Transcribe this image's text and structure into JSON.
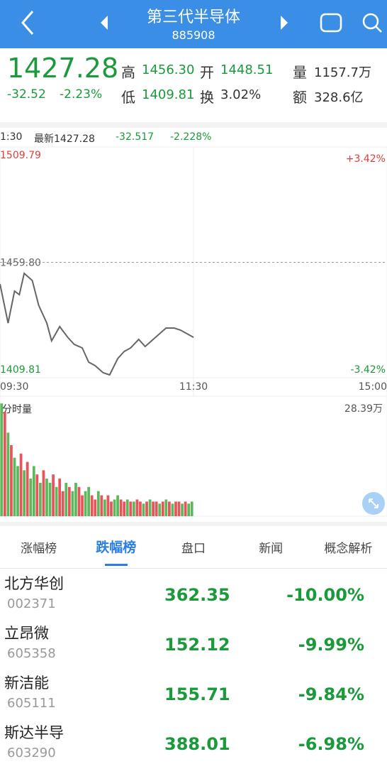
{
  "header": {
    "title": "第三代半导体",
    "code": "885908"
  },
  "quote": {
    "price": "1427.28",
    "change": "-32.52",
    "change_pct": "-2.23%",
    "high_label": "高",
    "high": "1456.30",
    "open_label": "开",
    "open": "1448.51",
    "volume_label": "量",
    "volume": "1157.7万",
    "low_label": "低",
    "low": "1409.81",
    "turnover_label": "换",
    "turnover": "3.02%",
    "amount_label": "额",
    "amount": "328.6亿"
  },
  "chart_info": {
    "time": "1:30",
    "latest": "最新1427.28",
    "change": "-32.517",
    "change_pct": "-2.228%"
  },
  "chart_data": [
    {
      "type": "line",
      "color": "#666666",
      "x": [
        0,
        5,
        9,
        12,
        15,
        20,
        24,
        29,
        32,
        37,
        42,
        46,
        51,
        55,
        59,
        64,
        68,
        73,
        77,
        81,
        86,
        90,
        95,
        99,
        103,
        108,
        112,
        116,
        120
      ],
      "values": [
        1450.42,
        1433.51,
        1447.35,
        1445.81,
        1455.04,
        1451.96,
        1441.2,
        1433.51,
        1425.82,
        1431.97,
        1427.35,
        1424.28,
        1422.74,
        1416.59,
        1415.05,
        1411.97,
        1411.05,
        1418.13,
        1421.2,
        1422.74,
        1426.43,
        1423.35,
        1426.43,
        1428.89,
        1431.35,
        1431.35,
        1430.43,
        1428.89,
        1427.3
      ],
      "xlim": [
        0,
        240
      ],
      "xticks": [
        {
          "value": 0,
          "label": "09:30"
        },
        {
          "value": 120,
          "label": "11:30"
        },
        {
          "value": 240,
          "label": "15:00"
        }
      ],
      "ylim": [
        1409.81,
        1509.79
      ],
      "yticks": [
        1509.79,
        {
          "value": 1459.8,
          "label": "1459.80"
        },
        1409.81
      ],
      "y2lim": [
        -3.42,
        3.42
      ],
      "y2ticks": [
        {
          "value": 3.42,
          "label": "+3.42%"
        },
        {
          "value": -3.42,
          "label": "-3.42%"
        }
      ]
    },
    {
      "type": "bar",
      "title": "分时量",
      "x": [
        1,
        3,
        5,
        7,
        9,
        11,
        13,
        15,
        17,
        19,
        21,
        23,
        25,
        27,
        29,
        31,
        33,
        35,
        37,
        39,
        41,
        43,
        45,
        47,
        49,
        51,
        53,
        55,
        57,
        59,
        61,
        63,
        65,
        67,
        69,
        71,
        73,
        75,
        77,
        79,
        81,
        83,
        85,
        87,
        89,
        91,
        93,
        95,
        97,
        99,
        101,
        103,
        105,
        107,
        109,
        111,
        113,
        115,
        117,
        119
      ],
      "values": [
        27,
        25,
        20,
        17,
        14,
        12,
        15,
        11,
        13,
        9,
        12,
        10,
        8,
        11,
        9,
        8,
        10,
        7,
        9,
        6,
        8,
        7,
        6,
        8,
        7,
        5,
        6,
        7,
        5,
        4,
        6,
        5,
        4,
        5,
        3.5,
        4,
        5,
        4,
        3.5,
        4,
        3.5,
        3.5,
        4,
        3.5,
        3,
        3.5,
        4,
        3.5,
        3.5,
        3,
        3.5,
        4,
        3.5,
        3,
        3.5,
        3.5,
        3,
        3.5,
        3,
        3.5
      ],
      "colors": [
        "#5cb85c",
        "#e8545a",
        "#5cb85c",
        "#e8545a",
        "#5cb85c",
        "#5cb85c",
        "#e8545a",
        "#5cb85c",
        "#e8545a",
        "#5cb85c",
        "#5cb85c",
        "#e8545a",
        "#5cb85c",
        "#e8545a",
        "#5cb85c",
        "#5cb85c",
        "#e8545a",
        "#5cb85c",
        "#e8545a",
        "#e8545a",
        "#5cb85c",
        "#e8545a",
        "#5cb85c",
        "#5cb85c",
        "#e8545a",
        "#e8545a",
        "#5cb85c",
        "#5cb85c",
        "#e8545a",
        "#e8545a",
        "#5cb85c",
        "#e8545a",
        "#5cb85c",
        "#e8545a",
        "#e8545a",
        "#5cb85c",
        "#5cb85c",
        "#e8545a",
        "#e8545a",
        "#5cb85c",
        "#e8545a",
        "#5cb85c",
        "#e8545a",
        "#e8545a",
        "#5cb85c",
        "#e8545a",
        "#5cb85c",
        "#e8545a",
        "#e8545a",
        "#5cb85c",
        "#e8545a",
        "#5cb85c",
        "#e8545a",
        "#5cb85c",
        "#e8545a",
        "#e8545a",
        "#5cb85c",
        "#e8545a",
        "#5cb85c",
        "#5cb85c"
      ],
      "xlim": [
        0,
        240
      ],
      "ylim": [
        0,
        28.39
      ],
      "yticks": [
        {
          "value": 28.39,
          "label": "28.39万"
        }
      ]
    }
  ],
  "tabs": [
    "涨幅榜",
    "跌幅榜",
    "盘口",
    "新闻",
    "概念解析"
  ],
  "active_tab": 1,
  "list": [
    {
      "name": "北方华创",
      "code": "002371",
      "price": "362.35",
      "change_pct": "-10.00%"
    },
    {
      "name": "立昂微",
      "code": "605358",
      "price": "152.12",
      "change_pct": "-9.99%"
    },
    {
      "name": "新洁能",
      "code": "605111",
      "price": "155.71",
      "change_pct": "-9.84%"
    },
    {
      "name": "斯达半导",
      "code": "603290",
      "price": "388.01",
      "change_pct": "-6.98%"
    }
  ]
}
